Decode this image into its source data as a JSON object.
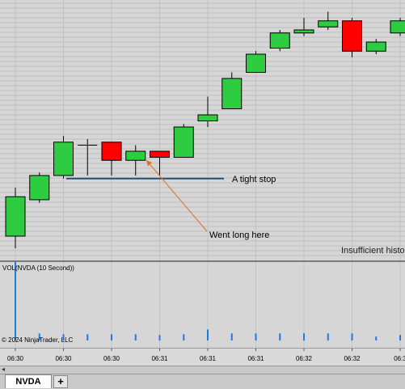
{
  "chart_data": [
    {
      "type": "candlestick",
      "title": "",
      "grid": true,
      "candles": [
        {
          "open": 4.0,
          "high": 12.0,
          "low": 2.0,
          "close": 10.5,
          "color": "#2ecc40"
        },
        {
          "open": 10.0,
          "high": 14.5,
          "low": 9.5,
          "close": 14.0,
          "color": "#2ecc40"
        },
        {
          "open": 14.0,
          "high": 20.5,
          "low": 13.5,
          "close": 19.5,
          "color": "#2ecc40"
        },
        {
          "open": 19.0,
          "high": 20.0,
          "low": 14.0,
          "close": 19.0,
          "color": "#2ecc40"
        },
        {
          "open": 19.5,
          "high": 19.5,
          "low": 14.0,
          "close": 16.5,
          "color": "#ff0000"
        },
        {
          "open": 16.5,
          "high": 19.0,
          "low": 14.0,
          "close": 18.0,
          "color": "#2ecc40"
        },
        {
          "open": 18.0,
          "high": 18.0,
          "low": 14.0,
          "close": 17.0,
          "color": "#ff0000"
        },
        {
          "open": 17.0,
          "high": 22.5,
          "low": 17.0,
          "close": 22.0,
          "color": "#2ecc40"
        },
        {
          "open": 23.0,
          "high": 27.0,
          "low": 22.0,
          "close": 24.0,
          "color": "#2ecc40"
        },
        {
          "open": 25.0,
          "high": 31.0,
          "low": 25.0,
          "close": 30.0,
          "color": "#2ecc40"
        },
        {
          "open": 31.0,
          "high": 34.5,
          "low": 31.0,
          "close": 34.0,
          "color": "#2ecc40"
        },
        {
          "open": 35.0,
          "high": 38.0,
          "low": 34.5,
          "close": 37.5,
          "color": "#2ecc40"
        },
        {
          "open": 37.5,
          "high": 40.0,
          "low": 37.0,
          "close": 38.0,
          "color": "#2ecc40"
        },
        {
          "open": 38.5,
          "high": 41.0,
          "low": 38.0,
          "close": 39.5,
          "color": "#2ecc40"
        },
        {
          "open": 39.5,
          "high": 40.0,
          "low": 33.5,
          "close": 34.5,
          "color": "#ff0000"
        },
        {
          "open": 34.5,
          "high": 36.5,
          "low": 34.0,
          "close": 36.0,
          "color": "#2ecc40"
        },
        {
          "open": 37.5,
          "high": 40.0,
          "low": 37.0,
          "close": 39.5,
          "color": "#2ecc40"
        }
      ],
      "stop_line": 13.5,
      "annotations": [
        {
          "text": "A tight stop",
          "kind": "label"
        },
        {
          "text": "Went long here",
          "kind": "arrow-label"
        }
      ],
      "status_text": "Insufficient histo"
    },
    {
      "type": "bar",
      "title": "VOL(NVDA (10 Second))",
      "volumes": [
        100,
        9,
        8,
        8,
        8,
        8,
        7,
        8,
        14,
        9,
        9,
        9,
        9,
        9,
        9,
        5,
        7
      ],
      "bar_color": "#1e7be0"
    }
  ],
  "time_axis": {
    "labels": [
      "06:30",
      "06:30",
      "06:30",
      "06:31",
      "06:31",
      "06:31",
      "06:32",
      "06:32",
      "06:3"
    ]
  },
  "copyright": "© 2024 NinjaTrader, LLC",
  "tabs": {
    "active_label": "NVDA",
    "add_label": "+"
  }
}
